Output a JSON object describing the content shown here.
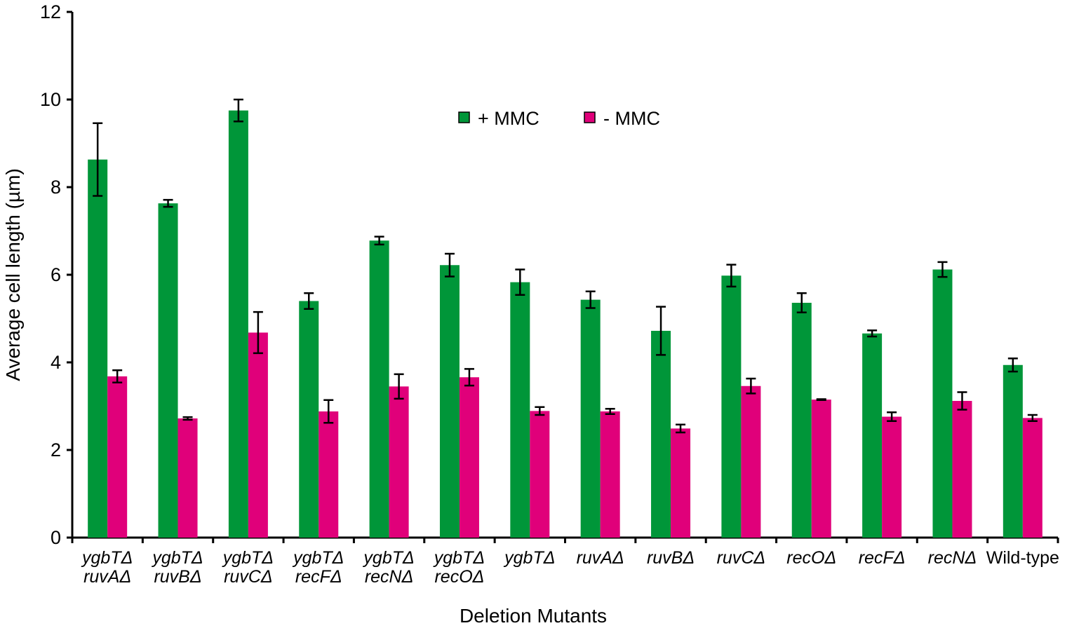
{
  "chart_data": {
    "type": "bar",
    "xlabel": "Deletion Mutants",
    "ylabel": "Average cell length (µm)",
    "ylim": [
      0,
      12
    ],
    "yticks": [
      0,
      2,
      4,
      6,
      8,
      10,
      12
    ],
    "grid": false,
    "legend_position": "top-center",
    "categories": [
      [
        "ygbTΔ",
        "ruvAΔ"
      ],
      [
        "ygbTΔ",
        "ruvBΔ"
      ],
      [
        "ygbTΔ",
        "ruvCΔ"
      ],
      [
        "ygbTΔ",
        "recFΔ"
      ],
      [
        "ygbTΔ",
        "recNΔ"
      ],
      [
        "ygbTΔ",
        "recOΔ"
      ],
      [
        "ygbTΔ"
      ],
      [
        "ruvAΔ"
      ],
      [
        "ruvBΔ"
      ],
      [
        "ruvCΔ"
      ],
      [
        "recOΔ"
      ],
      [
        "recFΔ"
      ],
      [
        "recNΔ"
      ],
      [
        "Wild-type"
      ]
    ],
    "series": [
      {
        "name": "+ MMC",
        "color": "#009639",
        "values": [
          8.63,
          7.63,
          9.75,
          5.4,
          6.78,
          6.22,
          5.83,
          5.43,
          4.72,
          5.98,
          5.36,
          4.66,
          6.12,
          3.94
        ],
        "errors": [
          0.83,
          0.08,
          0.25,
          0.18,
          0.09,
          0.26,
          0.29,
          0.19,
          0.55,
          0.25,
          0.22,
          0.07,
          0.17,
          0.15
        ]
      },
      {
        "name": "- MMC",
        "color": "#e0007a",
        "values": [
          3.68,
          2.72,
          4.68,
          2.88,
          3.45,
          3.66,
          2.89,
          2.88,
          2.49,
          3.46,
          3.15,
          2.76,
          3.12,
          2.73
        ],
        "errors": [
          0.14,
          0.03,
          0.47,
          0.26,
          0.28,
          0.19,
          0.09,
          0.06,
          0.09,
          0.17,
          0.01,
          0.1,
          0.2,
          0.07
        ]
      }
    ]
  }
}
